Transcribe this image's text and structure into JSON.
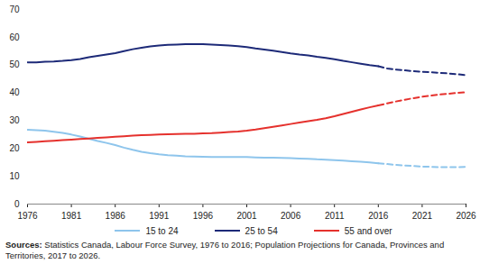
{
  "chart_data": {
    "type": "line",
    "x": [
      1976,
      1977,
      1978,
      1979,
      1980,
      1981,
      1982,
      1983,
      1984,
      1985,
      1986,
      1987,
      1988,
      1989,
      1990,
      1991,
      1992,
      1993,
      1994,
      1995,
      1996,
      1997,
      1998,
      1999,
      2000,
      2001,
      2002,
      2003,
      2004,
      2005,
      2006,
      2007,
      2008,
      2009,
      2010,
      2011,
      2012,
      2013,
      2014,
      2015,
      2016,
      2017,
      2018,
      2019,
      2020,
      2021,
      2022,
      2023,
      2024,
      2025,
      2026
    ],
    "xlim": [
      1976,
      2026
    ],
    "xticks": [
      1976,
      1981,
      1986,
      1991,
      1996,
      2001,
      2006,
      2011,
      2016,
      2021,
      2026
    ],
    "ylim": [
      0,
      70
    ],
    "yticks": [
      0,
      10,
      20,
      30,
      40,
      50,
      60,
      70
    ],
    "grid": false,
    "legend": "bottom",
    "caption": "Sources: Statistics Canada, Labour Force Survey, 1976 to 2016; Population Projections for Canada, Provinces and Territories, 2017 to 2026.",
    "series": [
      {
        "name": "15 to 24",
        "color": "#8ec5ec",
        "line_style": "solid",
        "values": [
          26.7,
          26.6,
          26.4,
          26,
          25.6,
          25,
          24.3,
          23.5,
          22.7,
          22,
          21.2,
          20.3,
          19.5,
          18.8,
          18.3,
          17.9,
          17.6,
          17.4,
          17.2,
          17.1,
          17,
          16.9,
          16.9,
          16.9,
          16.9,
          16.9,
          16.8,
          16.7,
          16.7,
          16.6,
          16.5,
          16.4,
          16.3,
          16.1,
          16,
          15.8,
          15.6,
          15.4,
          15.2,
          15,
          14.7,
          null,
          null,
          null,
          null,
          null,
          null,
          null,
          null,
          null,
          null
        ]
      },
      {
        "name": "15 to 24",
        "color": "#8ec5ec",
        "line_style": "dashed",
        "values": [
          null,
          null,
          null,
          null,
          null,
          null,
          null,
          null,
          null,
          null,
          null,
          null,
          null,
          null,
          null,
          null,
          null,
          null,
          null,
          null,
          null,
          null,
          null,
          null,
          null,
          null,
          null,
          null,
          null,
          null,
          null,
          null,
          null,
          null,
          null,
          null,
          null,
          null,
          null,
          null,
          14.7,
          14.4,
          14.1,
          13.9,
          13.7,
          13.5,
          13.4,
          13.3,
          13.3,
          13.3,
          13.4
        ]
      },
      {
        "name": "25 to 54",
        "color": "#1d2a78",
        "line_style": "solid",
        "values": [
          51,
          51,
          51.2,
          51.3,
          51.5,
          51.8,
          52.2,
          52.8,
          53.3,
          53.8,
          54.3,
          55,
          55.7,
          56.2,
          56.7,
          57,
          57.3,
          57.4,
          57.5,
          57.5,
          57.5,
          57.4,
          57.2,
          57,
          56.8,
          56.5,
          56,
          55.6,
          55.2,
          54.7,
          54.2,
          53.8,
          53.5,
          53,
          52.6,
          52.1,
          51.5,
          51,
          50.5,
          50,
          49.6,
          null,
          null,
          null,
          null,
          null,
          null,
          null,
          null,
          null,
          null
        ]
      },
      {
        "name": "25 to 54",
        "color": "#1d2a78",
        "line_style": "dashed",
        "values": [
          null,
          null,
          null,
          null,
          null,
          null,
          null,
          null,
          null,
          null,
          null,
          null,
          null,
          null,
          null,
          null,
          null,
          null,
          null,
          null,
          null,
          null,
          null,
          null,
          null,
          null,
          null,
          null,
          null,
          null,
          null,
          null,
          null,
          null,
          null,
          null,
          null,
          null,
          null,
          null,
          49.6,
          48.8,
          48.4,
          48.1,
          47.8,
          47.6,
          47.4,
          47.2,
          47,
          46.7,
          46.4
        ]
      },
      {
        "name": "55 and over",
        "color": "#e5312d",
        "line_style": "solid",
        "values": [
          22.2,
          22.4,
          22.6,
          22.8,
          23,
          23.2,
          23.4,
          23.6,
          23.8,
          24,
          24.2,
          24.4,
          24.6,
          24.8,
          24.9,
          25,
          25.1,
          25.2,
          25.3,
          25.3,
          25.4,
          25.5,
          25.7,
          25.9,
          26.1,
          26.4,
          26.8,
          27.3,
          27.8,
          28.3,
          28.8,
          29.3,
          29.8,
          30.3,
          30.9,
          31.6,
          32.4,
          33.2,
          34,
          34.8,
          35.5,
          null,
          null,
          null,
          null,
          null,
          null,
          null,
          null,
          null,
          null
        ]
      },
      {
        "name": "55 and over",
        "color": "#e5312d",
        "line_style": "dashed",
        "values": [
          null,
          null,
          null,
          null,
          null,
          null,
          null,
          null,
          null,
          null,
          null,
          null,
          null,
          null,
          null,
          null,
          null,
          null,
          null,
          null,
          null,
          null,
          null,
          null,
          null,
          null,
          null,
          null,
          null,
          null,
          null,
          null,
          null,
          null,
          null,
          null,
          null,
          null,
          null,
          null,
          35.5,
          36.2,
          36.9,
          37.5,
          38.1,
          38.6,
          39,
          39.4,
          39.7,
          40,
          40.2
        ]
      }
    ]
  }
}
